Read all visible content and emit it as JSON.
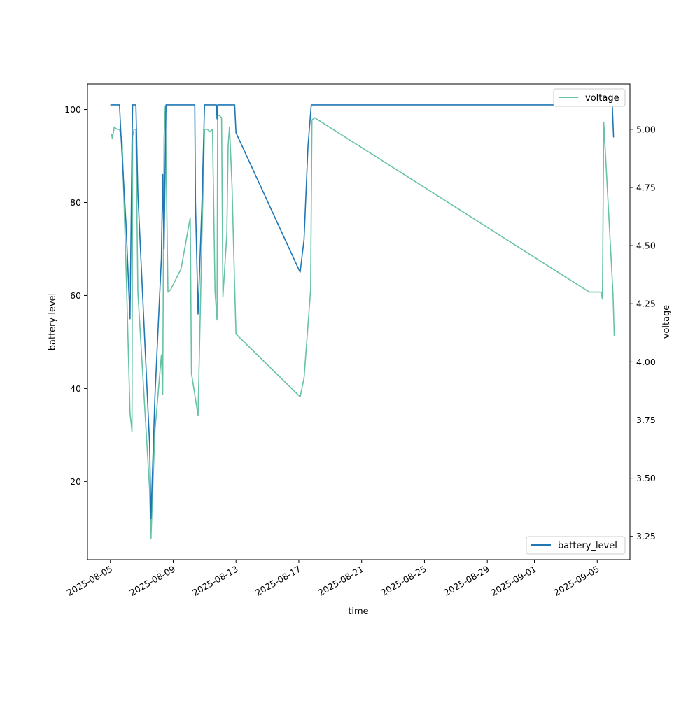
{
  "chart_data": {
    "type": "line",
    "xlabel": "time",
    "ylabel": "battery level",
    "y2label": "voltage",
    "x_tick_labels": [
      "2025-08-05",
      "2025-08-09",
      "2025-08-13",
      "2025-08-17",
      "2025-08-21",
      "2025-08-25",
      "2025-08-29",
      "2025-09-01",
      "2025-09-05"
    ],
    "x_ticks": [
      "2025-08-05",
      "2025-08-09",
      "2025-08-13",
      "2025-08-17",
      "2025-08-21",
      "2025-08-25",
      "2025-08-29",
      "2025-09-01",
      "2025-09-05"
    ],
    "xlim": [
      "2025-08-03T13:00",
      "2025-09-07T02:00"
    ],
    "y_ticks": [
      20,
      40,
      60,
      80,
      100
    ],
    "y_tick_labels": [
      "20",
      "40",
      "60",
      "80",
      "100"
    ],
    "ylim": [
      3.2,
      105.5
    ],
    "y2_ticks": [
      3.25,
      3.5,
      3.75,
      4.0,
      4.25,
      4.5,
      4.75,
      5.0
    ],
    "y2_tick_labels": [
      "3.25",
      "3.50",
      "3.75",
      "4.00",
      "4.25",
      "4.50",
      "4.75",
      "5.00"
    ],
    "y2lim": [
      3.15,
      5.195
    ],
    "grid": false,
    "series": [
      {
        "name": "battery_level",
        "axis": "left",
        "color": "#1f77b4",
        "legend_position": "lower right",
        "points": [
          [
            "2025-08-05T00:00",
            101
          ],
          [
            "2025-08-05T14:00",
            101
          ],
          [
            "2025-08-05T16:00",
            95
          ],
          [
            "2025-08-06T00:00",
            75
          ],
          [
            "2025-08-06T06:00",
            55
          ],
          [
            "2025-08-06T09:00",
            92
          ],
          [
            "2025-08-06T10:00",
            101
          ],
          [
            "2025-08-06T15:00",
            101
          ],
          [
            "2025-08-06T18:00",
            82
          ],
          [
            "2025-08-07T12:00",
            28
          ],
          [
            "2025-08-07T14:00",
            12
          ],
          [
            "2025-08-07T20:00",
            38
          ],
          [
            "2025-08-08T06:00",
            68
          ],
          [
            "2025-08-08T08:00",
            86
          ],
          [
            "2025-08-08T10:00",
            70
          ],
          [
            "2025-08-08T13:00",
            101
          ],
          [
            "2025-08-09T12:00",
            101
          ],
          [
            "2025-08-10T09:00",
            101
          ],
          [
            "2025-08-10T10:00",
            80
          ],
          [
            "2025-08-10T14:00",
            56
          ],
          [
            "2025-08-10T20:00",
            80
          ],
          [
            "2025-08-11T00:00",
            101
          ],
          [
            "2025-08-11T18:00",
            101
          ],
          [
            "2025-08-11T19:00",
            98
          ],
          [
            "2025-08-11T20:00",
            101
          ],
          [
            "2025-08-12T10:00",
            101
          ],
          [
            "2025-08-12T22:00",
            101
          ],
          [
            "2025-08-13T00:00",
            95
          ],
          [
            "2025-08-17T02:00",
            65
          ],
          [
            "2025-08-17T08:00",
            72
          ],
          [
            "2025-08-17T14:00",
            92
          ],
          [
            "2025-08-17T19:00",
            101
          ],
          [
            "2025-09-05T00:00",
            101
          ],
          [
            "2025-09-05T18:00",
            101
          ],
          [
            "2025-09-05T23:00",
            101
          ],
          [
            "2025-09-06T01:00",
            94
          ]
        ]
      },
      {
        "name": "voltage",
        "axis": "right",
        "color": "#66c2a5",
        "legend_position": "upper right",
        "points": [
          [
            "2025-08-05T02:00",
            4.98
          ],
          [
            "2025-08-05T03:00",
            4.96
          ],
          [
            "2025-08-05T06:00",
            5.01
          ],
          [
            "2025-08-05T10:00",
            5.0
          ],
          [
            "2025-08-05T14:00",
            5.0
          ],
          [
            "2025-08-05T18:00",
            4.95
          ],
          [
            "2025-08-06T00:00",
            4.4
          ],
          [
            "2025-08-06T06:00",
            3.78
          ],
          [
            "2025-08-06T09:00",
            3.7
          ],
          [
            "2025-08-06T10:00",
            4.97
          ],
          [
            "2025-08-06T12:00",
            5.0
          ],
          [
            "2025-08-06T15:00",
            5.0
          ],
          [
            "2025-08-06T18:00",
            4.3
          ],
          [
            "2025-08-07T12:00",
            3.45
          ],
          [
            "2025-08-07T14:00",
            3.24
          ],
          [
            "2025-08-07T20:00",
            3.7
          ],
          [
            "2025-08-08T06:00",
            4.03
          ],
          [
            "2025-08-08T08:00",
            3.86
          ],
          [
            "2025-08-08T10:00",
            4.96
          ],
          [
            "2025-08-08T12:00",
            5.1
          ],
          [
            "2025-08-08T16:00",
            4.3
          ],
          [
            "2025-08-08T20:00",
            4.31
          ],
          [
            "2025-08-09T12:00",
            4.4
          ],
          [
            "2025-08-10T02:00",
            4.62
          ],
          [
            "2025-08-10T04:00",
            3.95
          ],
          [
            "2025-08-10T14:00",
            3.77
          ],
          [
            "2025-08-10T20:00",
            4.55
          ],
          [
            "2025-08-11T00:00",
            5.0
          ],
          [
            "2025-08-11T04:00",
            5.0
          ],
          [
            "2025-08-11T08:00",
            4.99
          ],
          [
            "2025-08-11T12:00",
            5.0
          ],
          [
            "2025-08-11T16:00",
            4.3
          ],
          [
            "2025-08-11T19:00",
            4.18
          ],
          [
            "2025-08-11T20:00",
            5.06
          ],
          [
            "2025-08-11T22:00",
            5.06
          ],
          [
            "2025-08-12T02:00",
            5.05
          ],
          [
            "2025-08-12T04:00",
            4.28
          ],
          [
            "2025-08-12T10:00",
            4.55
          ],
          [
            "2025-08-12T12:00",
            4.93
          ],
          [
            "2025-08-12T14:00",
            5.01
          ],
          [
            "2025-08-12T18:00",
            4.75
          ],
          [
            "2025-08-12T22:00",
            4.32
          ],
          [
            "2025-08-13T00:00",
            4.12
          ],
          [
            "2025-08-17T02:00",
            3.85
          ],
          [
            "2025-08-17T08:00",
            3.93
          ],
          [
            "2025-08-17T18:00",
            4.31
          ],
          [
            "2025-08-17T20:00",
            5.04
          ],
          [
            "2025-08-18T00:00",
            5.05
          ],
          [
            "2025-09-04T12:00",
            4.3
          ],
          [
            "2025-09-05T06:00",
            4.3
          ],
          [
            "2025-09-05T08:00",
            4.27
          ],
          [
            "2025-09-05T10:00",
            5.03
          ],
          [
            "2025-09-06T00:00",
            4.3
          ],
          [
            "2025-09-06T02:00",
            4.11
          ]
        ]
      }
    ]
  }
}
